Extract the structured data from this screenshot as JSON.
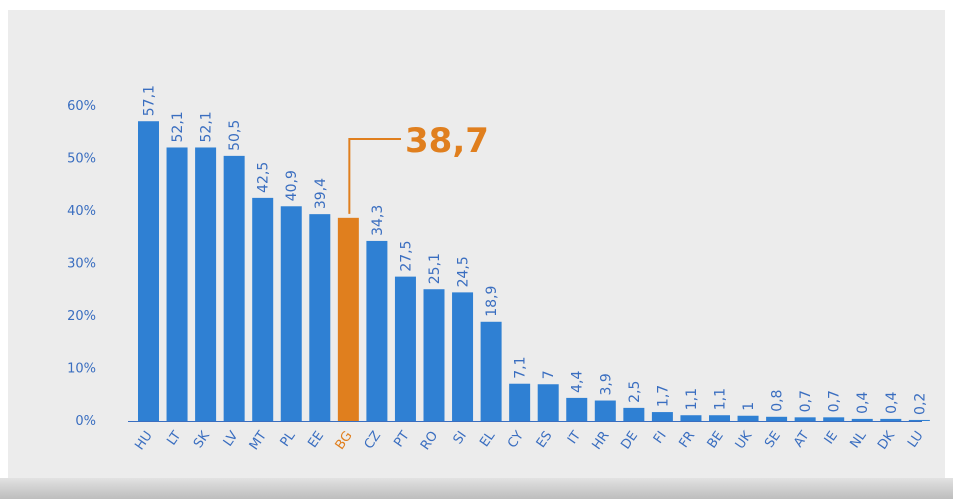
{
  "colors": {
    "bar": "#2f80d3",
    "highlight": "#e07f1e",
    "tick": "#3a6ec0",
    "axis": "#3a6ec0"
  },
  "chart_data": {
    "type": "bar",
    "categories": [
      "HU",
      "LT",
      "SK",
      "LV",
      "MT",
      "PL",
      "EE",
      "BG",
      "CZ",
      "PT",
      "RO",
      "SI",
      "EL",
      "CY",
      "ES",
      "IT",
      "HR",
      "DE",
      "FI",
      "FR",
      "BE",
      "UK",
      "SE",
      "AT",
      "IE",
      "NL",
      "DK",
      "LU"
    ],
    "values": [
      57.1,
      52.1,
      52.1,
      50.5,
      42.5,
      40.9,
      39.4,
      38.7,
      34.3,
      27.5,
      25.1,
      24.5,
      18.9,
      7.1,
      7,
      4.4,
      3.9,
      2.5,
      1.7,
      1.1,
      1.1,
      1,
      0.8,
      0.7,
      0.7,
      0.4,
      0.4,
      0.2
    ],
    "value_labels": [
      "57,1",
      "52,1",
      "52,1",
      "50,5",
      "42,5",
      "40,9",
      "39,4",
      "38,7",
      "34,3",
      "27,5",
      "25,1",
      "24,5",
      "18,9",
      "7,1",
      "7",
      "4,4",
      "3,9",
      "2,5",
      "1,7",
      "1,1",
      "1,1",
      "1",
      "0,8",
      "0,7",
      "0,7",
      "0,4",
      "0,4",
      "0,2"
    ],
    "highlight_category": "BG",
    "highlight_label": "38,7",
    "yticks": [
      "0%",
      "10%",
      "20%",
      "30%",
      "40%",
      "50%",
      "60%"
    ],
    "ylim": [
      0,
      60
    ],
    "grid": false,
    "legend": "none"
  }
}
